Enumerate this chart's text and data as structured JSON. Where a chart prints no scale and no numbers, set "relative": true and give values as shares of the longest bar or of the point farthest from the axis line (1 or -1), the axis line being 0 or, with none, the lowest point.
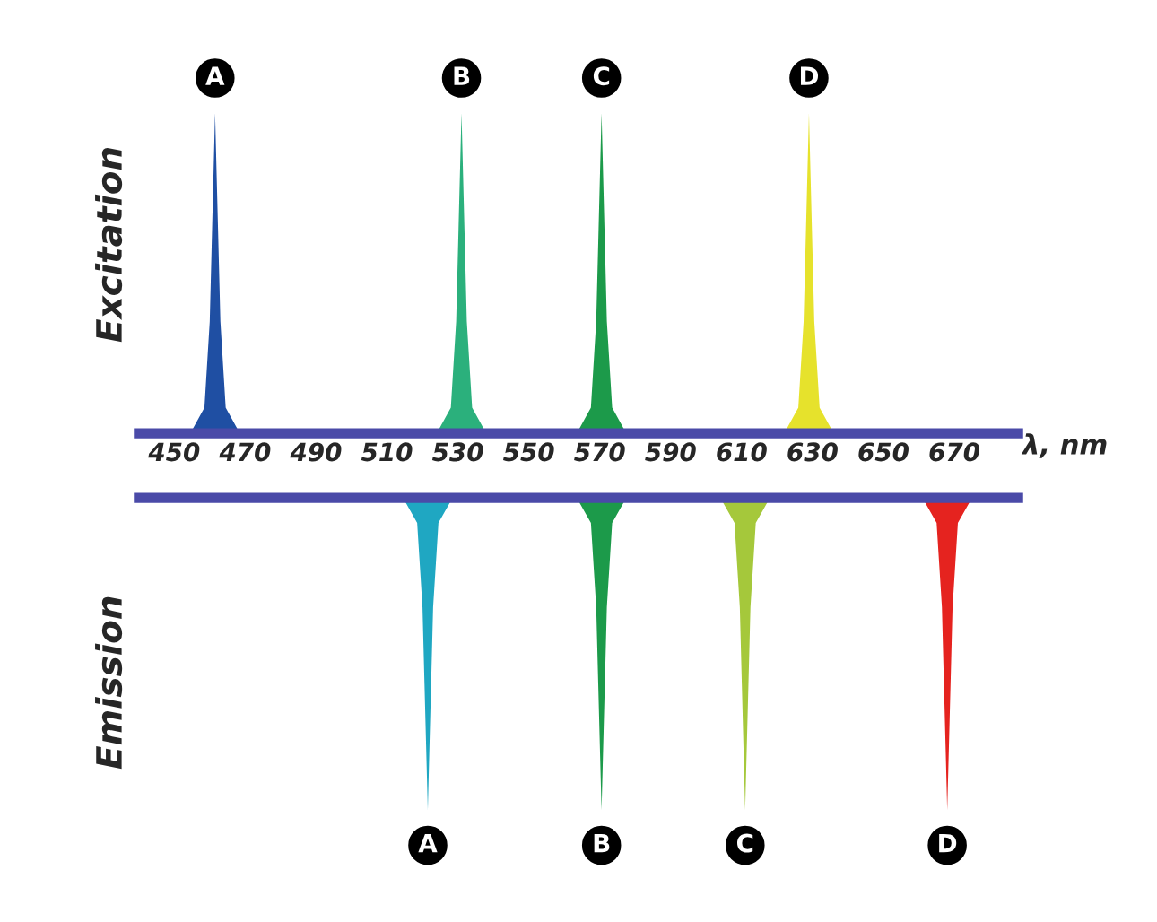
{
  "chart_data": [
    {
      "type": "area",
      "relative": true,
      "ylabel": "Excitation",
      "xlabel": "λ, nm",
      "xlim": [
        440,
        688
      ],
      "xticks": [
        450,
        470,
        490,
        510,
        530,
        550,
        570,
        590,
        610,
        630,
        650,
        670
      ],
      "tick_labels": "x",
      "grid": false,
      "legend": false,
      "series": [
        {
          "color": "#1f4fa3",
          "x": [
            454.5,
            458.5,
            460,
            461.5,
            463,
            464.5,
            468.5
          ],
          "values": [
            0,
            0.08,
            0.35,
            1,
            0.35,
            0.08,
            0
          ]
        },
        {
          "color": "#2bb07c",
          "x": [
            524,
            528,
            529.5,
            531,
            532.5,
            534,
            538
          ],
          "values": [
            0,
            0.08,
            0.35,
            1,
            0.35,
            0.08,
            0
          ]
        },
        {
          "color": "#1c9a4a",
          "x": [
            563.5,
            567.5,
            569,
            570.5,
            572,
            573.5,
            577.5
          ],
          "values": [
            0,
            0.08,
            0.35,
            1,
            0.35,
            0.08,
            0
          ]
        },
        {
          "color": "#e6e22c",
          "x": [
            622,
            626,
            627.5,
            629,
            630.5,
            632,
            636
          ],
          "values": [
            0,
            0.08,
            0.35,
            1,
            0.35,
            0.08,
            0
          ]
        }
      ],
      "annotations": [
        {
          "text": "A",
          "x": 461.5,
          "y": 1
        },
        {
          "text": "B",
          "x": 531,
          "y": 1
        },
        {
          "text": "C",
          "x": 570.5,
          "y": 1
        },
        {
          "text": "D",
          "x": 629,
          "y": 1
        }
      ]
    },
    {
      "type": "area",
      "relative": true,
      "ylabel": "Emission",
      "xlim": [
        440,
        688
      ],
      "tick_labels": false,
      "grid": false,
      "legend": false,
      "series": [
        {
          "color": "#1fa7c2",
          "x": [
            514.5,
            518.5,
            520,
            521.5,
            523,
            524.5,
            528.5
          ],
          "values": [
            0,
            -0.08,
            -0.35,
            -1,
            -0.35,
            -0.08,
            0
          ]
        },
        {
          "color": "#1c9a4a",
          "x": [
            563.5,
            567.5,
            569,
            570.5,
            572,
            573.5,
            577.5
          ],
          "values": [
            0,
            -0.08,
            -0.35,
            -1,
            -0.35,
            -0.08,
            0
          ]
        },
        {
          "color": "#a5c83b",
          "x": [
            604,
            608,
            609.5,
            611,
            612.5,
            614,
            618
          ],
          "values": [
            0,
            -0.08,
            -0.35,
            -1,
            -0.35,
            -0.08,
            0
          ]
        },
        {
          "color": "#e5231f",
          "x": [
            661,
            665,
            666.5,
            668,
            669.5,
            671,
            675
          ],
          "values": [
            0,
            -0.08,
            -0.35,
            -1,
            -0.35,
            -0.08,
            0
          ]
        }
      ],
      "annotations": [
        {
          "text": "A",
          "x": 521.5,
          "y": -1
        },
        {
          "text": "B",
          "x": 570.5,
          "y": -1
        },
        {
          "text": "C",
          "x": 611,
          "y": -1
        },
        {
          "text": "D",
          "x": 668,
          "y": -1
        }
      ]
    }
  ]
}
